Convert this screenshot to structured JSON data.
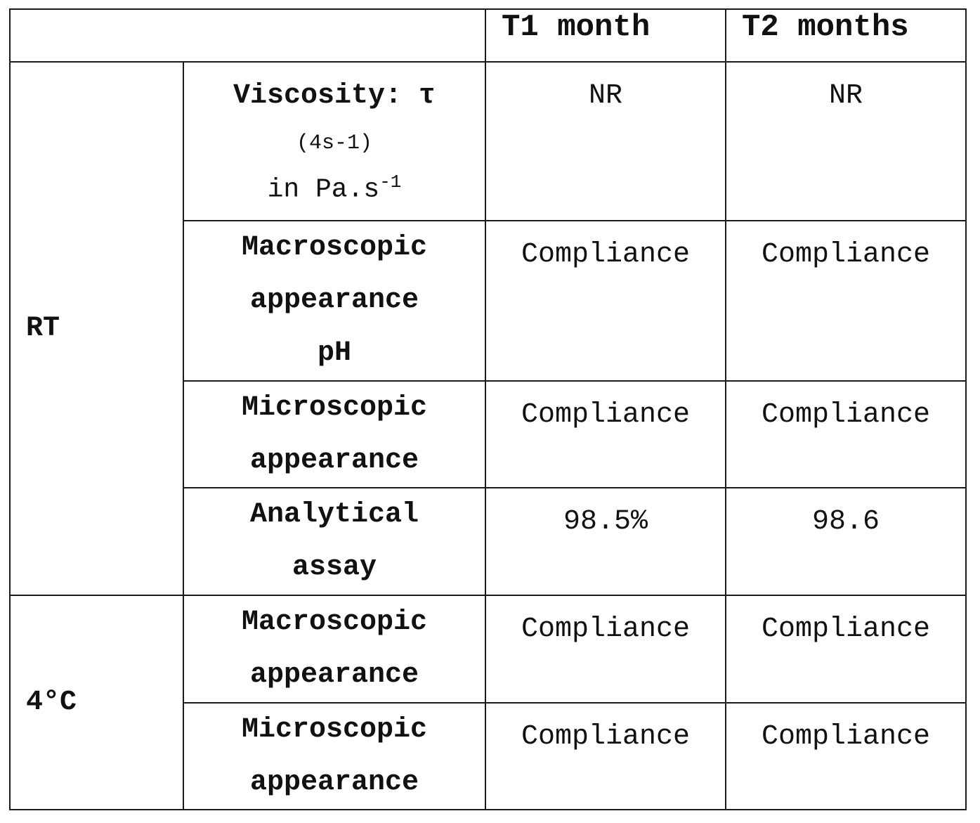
{
  "table": {
    "headers": [
      "",
      "T1 month",
      "T2 months"
    ],
    "groups": [
      {
        "label": "RT",
        "rows": [
          {
            "parameter": "Viscosity: τ",
            "parameter_sub": "(4s-1)",
            "parameter_unit": "in Pa.s",
            "parameter_unit_exp": "-1",
            "t1": "NR",
            "t2": "NR"
          },
          {
            "parameter_lines": [
              "Macroscopic",
              "appearance",
              "pH"
            ],
            "t1": "Compliance",
            "t2": "Compliance"
          },
          {
            "parameter_lines": [
              "Microscopic",
              "appearance"
            ],
            "t1": "Compliance",
            "t2": "Compliance"
          },
          {
            "parameter_lines": [
              "Analytical",
              "assay"
            ],
            "t1": "98.5%",
            "t2": "98.6"
          }
        ]
      },
      {
        "label": "4°C",
        "rows": [
          {
            "parameter_lines": [
              "Macroscopic",
              "appearance"
            ],
            "t1": "Compliance",
            "t2": "Compliance"
          },
          {
            "parameter_lines": [
              "Microscopic",
              "appearance"
            ],
            "t1": "Compliance",
            "t2": "Compliance"
          }
        ]
      }
    ]
  }
}
